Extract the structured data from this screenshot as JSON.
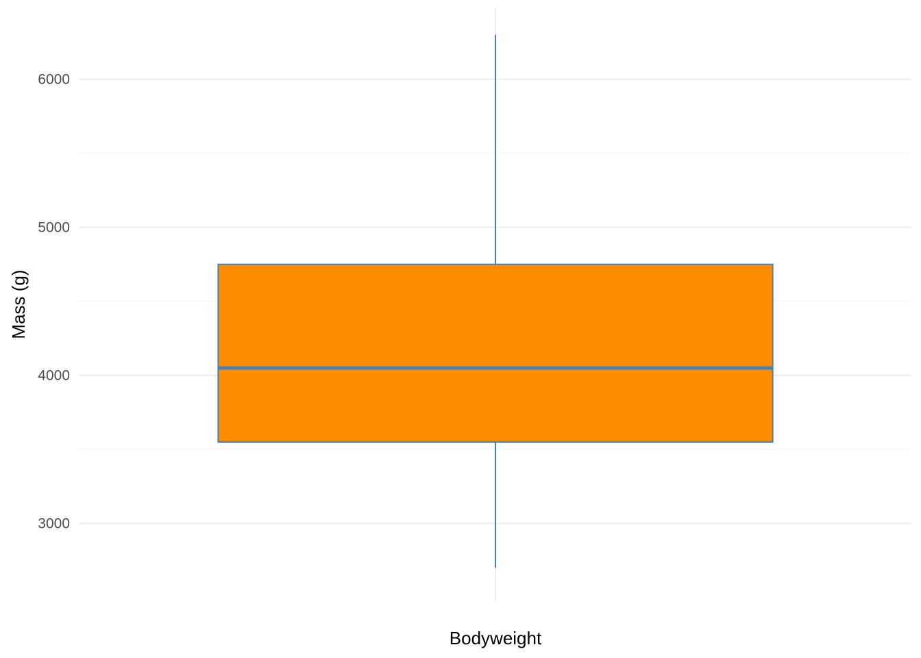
{
  "chart_data": {
    "type": "boxplot",
    "categories": [
      "Bodyweight"
    ],
    "boxes": [
      {
        "category": "Bodyweight",
        "whisker_low": 2700,
        "q1": 3550,
        "median": 4050,
        "q3": 4750,
        "whisker_high": 6300
      }
    ],
    "xlabel": "",
    "ylabel": "Mass (g)",
    "ylim": [
      2480,
      6480
    ],
    "yticks": [
      3000,
      4000,
      5000,
      6000
    ],
    "yticks_minor": [
      3500,
      4500,
      5500
    ],
    "grid": true,
    "legend": "none",
    "colors": {
      "box_fill": "#ff8c00",
      "box_line": "#4682b4",
      "grid": "#ebebeb",
      "tick_text": "#4d4d4d"
    }
  }
}
